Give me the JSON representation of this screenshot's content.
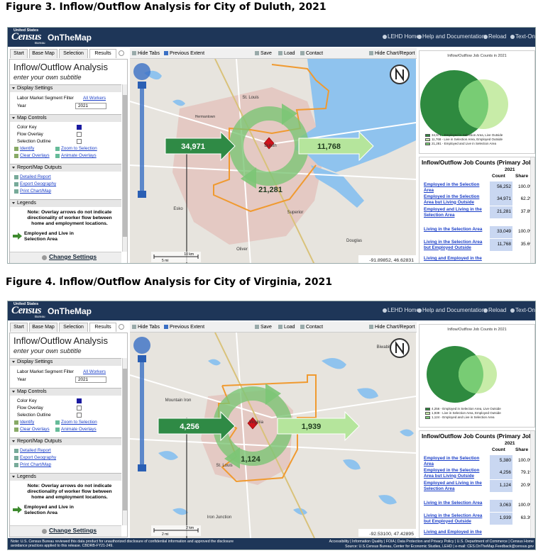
{
  "ui": {
    "header": {
      "logo_top": "United States",
      "logo": "Census",
      "logo_sub": "Bureau",
      "app": "OnTheMap",
      "links": [
        "LEHD Home",
        "Help and Documentation",
        "Reload",
        "Text-Only"
      ]
    },
    "tabs": [
      "Start",
      "Base Map",
      "Selection",
      "Results"
    ],
    "toolbar": [
      "Hide Tabs",
      "Previous Extent",
      "Save",
      "Load",
      "Contact",
      "Hide Chart/Report"
    ],
    "panel": {
      "title": "Inflow/Outflow Analysis",
      "subtitle": "enter your own subtitle",
      "sections": [
        "Display Settings",
        "Map Controls",
        "Report/Map Outputs",
        "Legends"
      ],
      "filter_label": "Labor Market Segment Filter",
      "filter_value": "All Workers",
      "year_label": "Year",
      "year": "2021",
      "controls": [
        "Color Key",
        "Flow Overlay",
        "Selection Outline"
      ],
      "tools": [
        "Identify",
        "Zoom to Selection",
        "Clear Overlays",
        "Animate Overlays"
      ],
      "outputs": [
        "Detailed Report",
        "Export Geography",
        "Print Chart/Map"
      ],
      "note": "Note: Overlay arrows do not indicate directionality of worker flow between home and employment locations.",
      "legend_item": "Employed and Live in Selection Area",
      "change": "Change Settings"
    },
    "chart_title": "Inflow/Outflow Job Counts in 2021",
    "table": {
      "title": "Inflow/Outflow Job Counts (Primary Jobs)",
      "year": "2021",
      "count": "Count",
      "share": "Share"
    }
  },
  "figures": [
    {
      "caption": "Figure 3. Inflow/Outflow Analysis for City of Duluth, 2021",
      "map_labels": [
        "St. Louis",
        "Hermantown",
        "Duluth",
        "Superior",
        "Douglas",
        "Oliver",
        "Esko"
      ],
      "flows": {
        "inflow": "34,971",
        "outflow": "11,768",
        "interior": "21,281"
      },
      "scale": [
        "10 km",
        "5 mi"
      ],
      "coordinates": "-91.89852, 46.62831",
      "venn_legend": [
        "34,971 - Employed in Selection Area, Live Outside",
        "11,768 - Live in Selection Area, Employed Outside",
        "21,281 - Employed and Live in Selection Area"
      ],
      "rows": [
        [
          "Employed in the Selection Area",
          "56,252",
          "100.0%"
        ],
        [
          "Employed in the Selection Area but Living Outside",
          "34,971",
          "62.2%"
        ],
        [
          "Employed and Living in the Selection Area",
          "21,281",
          "37.8%"
        ],
        [
          "Living in the Selection Area",
          "33,049",
          "100.0%"
        ],
        [
          "Living in the Selection Area but Employed Outside",
          "11,768",
          "35.6%"
        ],
        [
          "Living and Employed in the"
        ]
      ]
    },
    {
      "caption": "Figure 4. Inflow/Outflow Analysis for City of Virginia, 2021",
      "map_labels": [
        "Mountain Iron",
        "Virginia",
        "St. Louis",
        "Iron Junction",
        "Biwabik"
      ],
      "flows": {
        "inflow": "4,256",
        "outflow": "1,939",
        "interior": "1,124"
      },
      "scale": [
        "2 km",
        "2 mi"
      ],
      "coordinates": "-92.53100, 47.42895",
      "venn_legend": [
        "4,256 - Employed in Selection Area, Live Outside",
        "1,939 - Live in Selection Area, Employed Outside",
        "1,124 - Employed and Live in Selection Area"
      ],
      "rows": [
        [
          "Employed in the Selection Area",
          "5,380",
          "100.0%"
        ],
        [
          "Employed in the Selection Area but Living Outside",
          "4,256",
          "79.1%"
        ],
        [
          "Employed and Living in the Selection Area",
          "1,124",
          "20.9%"
        ],
        [
          "Living in the Selection Area",
          "3,063",
          "100.0%"
        ],
        [
          "Living in the Selection Area but Employed Outside",
          "1,939",
          "63.3%"
        ],
        [
          "Living and Employed in the"
        ]
      ],
      "footer": {
        "left": "Note: U.S. Census Bureau reviewed this data product for unauthorized disclosure of confidential information and approved the disclosure avoidance practices applied to this release. CBDRB-FY21-249.",
        "right": "Accessibility | Information Quality | FOIA | Data Protection and Privacy Policy | U.S. Department of Commerce | Census Home",
        "source": "Source: U.S.Census Bureau, Center for Economic Studies, LEHD | e-mail: CES.OnTheMap.Feedback@census.gov"
      }
    }
  ]
}
